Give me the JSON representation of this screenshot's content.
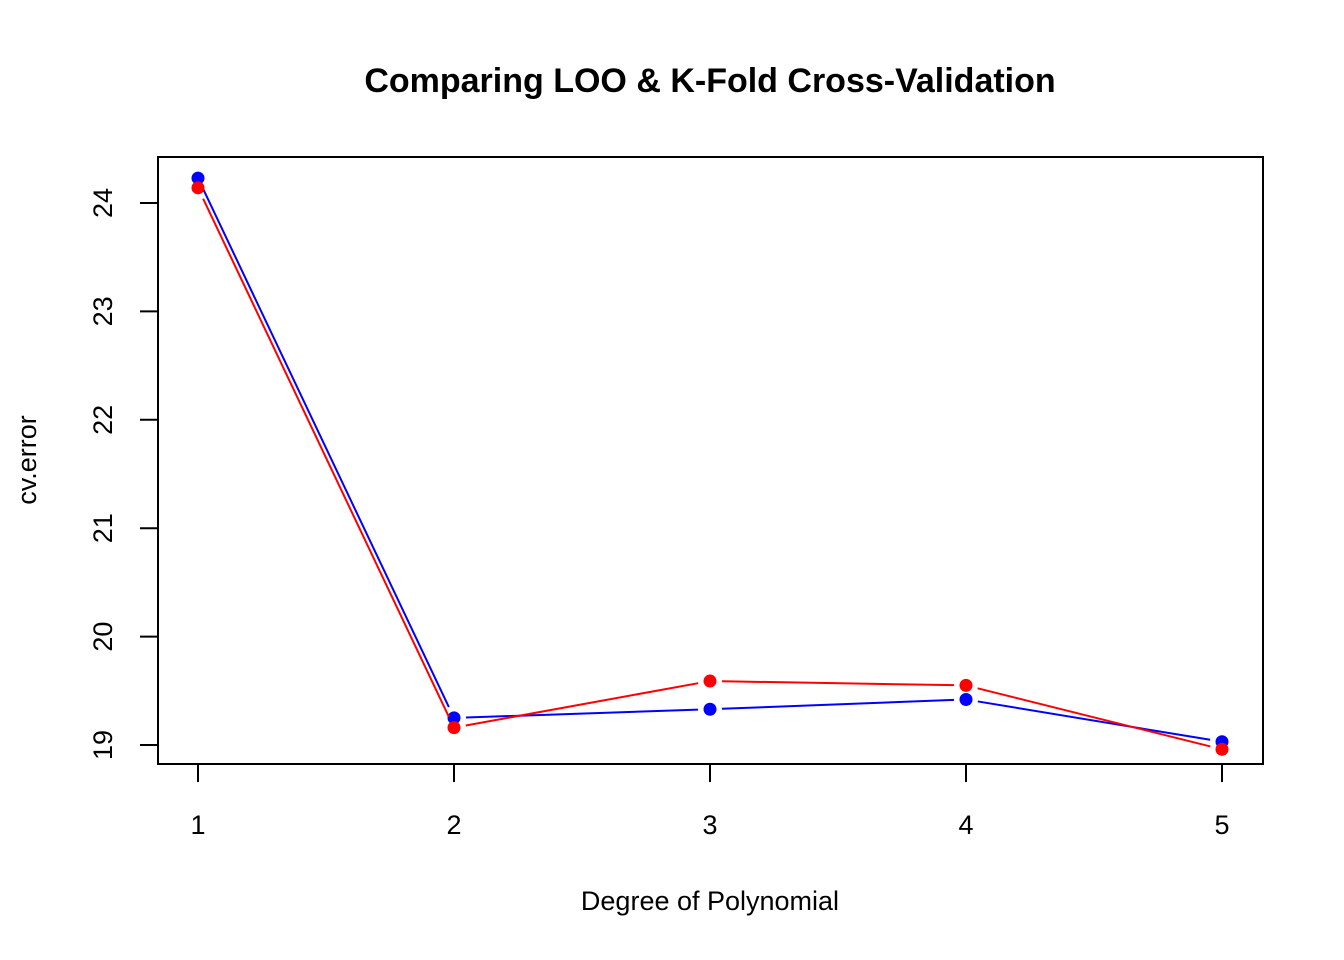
{
  "chart_data": {
    "type": "line",
    "title": "Comparing LOO & K-Fold Cross-Validation",
    "xlabel": "Degree of Polynomial",
    "ylabel": "cv.error",
    "x": [
      1,
      2,
      3,
      4,
      5
    ],
    "xlim": [
      1,
      5
    ],
    "ylim": [
      19,
      24
    ],
    "xticks": [
      "1",
      "2",
      "3",
      "4",
      "5"
    ],
    "yticks": [
      "19",
      "20",
      "21",
      "22",
      "23",
      "24"
    ],
    "grid": false,
    "legend": "none",
    "series": [
      {
        "color": "#0000ff",
        "values": [
          24.23,
          19.25,
          19.33,
          19.42,
          19.03
        ]
      },
      {
        "color": "#ff0000",
        "values": [
          24.14,
          19.16,
          19.59,
          19.55,
          18.96
        ]
      }
    ]
  }
}
